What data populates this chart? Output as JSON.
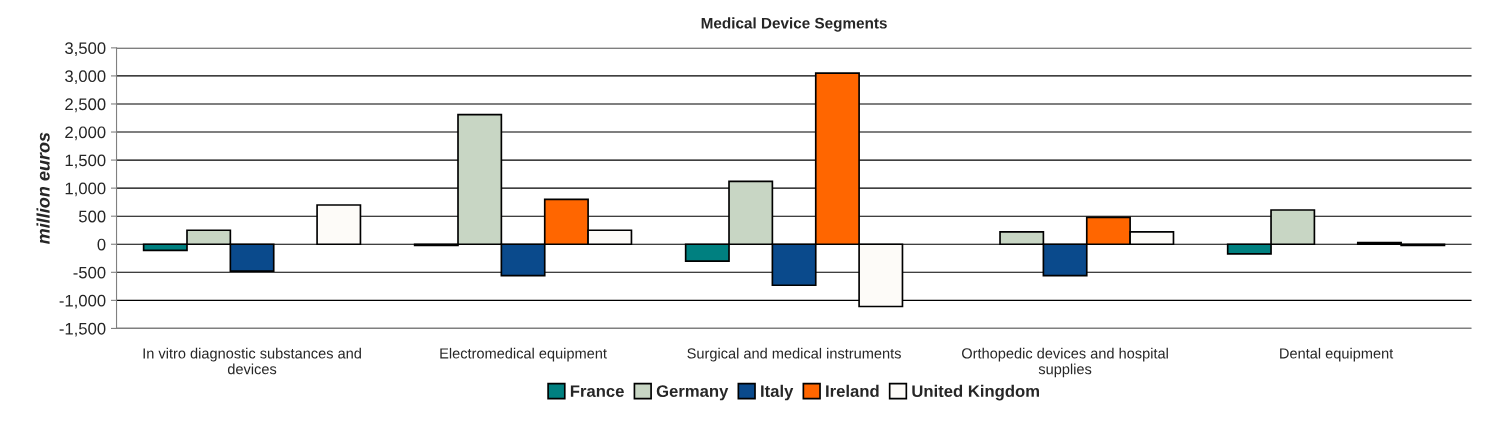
{
  "chart_data": {
    "type": "bar",
    "title": "Medical Device Segments",
    "ylabel": "million euros",
    "categories": [
      "In vitro diagnostic substances and devices",
      "Electromedical equipment",
      "Surgical and medical instruments",
      "Orthopedic devices and hospital supplies",
      "Dental equipment"
    ],
    "series": [
      {
        "name": "France",
        "color": "#008080",
        "values": [
          -110,
          -20,
          -300,
          null,
          -170
        ]
      },
      {
        "name": "Germany",
        "color": "#c8d6c4",
        "values": [
          250,
          2310,
          1120,
          220,
          610
        ]
      },
      {
        "name": "Italy",
        "color": "#0a4a8c",
        "values": [
          -480,
          -560,
          -730,
          -560,
          null
        ]
      },
      {
        "name": "Ireland",
        "color": "#ff6600",
        "values": [
          null,
          800,
          3050,
          480,
          30
        ]
      },
      {
        "name": "United Kingdom",
        "color": "#fdfbf8",
        "values": [
          700,
          250,
          -1110,
          220,
          -20
        ]
      }
    ],
    "ylim": [
      -1500,
      3500
    ],
    "yticks": [
      {
        "value": -1500,
        "label": "-1,500"
      },
      {
        "value": -1000,
        "label": "-1,000"
      },
      -500,
      0,
      500,
      {
        "value": 1000,
        "label": "1,000"
      },
      {
        "value": 1500,
        "label": "1,500"
      },
      {
        "value": 2000,
        "label": "2,000"
      },
      {
        "value": 2500,
        "label": "2,500"
      },
      {
        "value": 3000,
        "label": "3,000"
      },
      {
        "value": 3500,
        "label": "3,500"
      }
    ],
    "grid": "y",
    "legend": "bottom"
  }
}
